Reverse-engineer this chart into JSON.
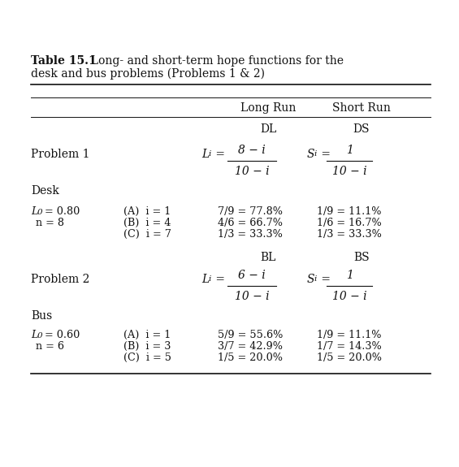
{
  "background_color": "#ffffff",
  "text_color": "#111111",
  "title_bold": "Table 15.1",
  "title_rest": "  Long- and short-term hope functions for the",
  "title_line2": "desk and bus problems (Problems 1 & 2)",
  "col_lr_label": "Long Run",
  "col_sr_label": "Short Run",
  "subhdr1_lr": "DL",
  "subhdr1_sr": "DS",
  "subhdr2_lr": "BL",
  "subhdr2_sr": "BS",
  "p1_label": "Problem 1",
  "p1_lr_num": "8 − i",
  "p1_lr_den": "10 − i",
  "p1_sr_num": "1",
  "p1_sr_den": "10 − i",
  "desk_label": "Desk",
  "desk_L0": "L",
  "desk_L0_sub": "0",
  "desk_L0_val": " = 0.80",
  "desk_n": "n = 8",
  "desk_rows": [
    {
      "label": "(A)  i = 1",
      "lr": "7/9 = 77.8%",
      "sr": "1/9 = 11.1%"
    },
    {
      "label": "(B)  i = 4",
      "lr": "4/6 = 66.7%",
      "sr": "1/6 = 16.7%"
    },
    {
      "label": "(C)  i = 7",
      "lr": "1/3 = 33.3%",
      "sr": "1/3 = 33.3%"
    }
  ],
  "p2_label": "Problem 2",
  "p2_lr_num": "6 − i",
  "p2_lr_den": "10 − i",
  "p2_sr_num": "1",
  "p2_sr_den": "10 − i",
  "bus_label": "Bus",
  "bus_L0": "L",
  "bus_L0_sub": "0",
  "bus_L0_val": " = 0.60",
  "bus_n": "n = 6",
  "bus_rows": [
    {
      "label": "(A)  i = 1",
      "lr": "5/9 = 55.6%",
      "sr": "1/9 = 11.1%"
    },
    {
      "label": "(B)  i = 3",
      "lr": "3/7 = 42.9%",
      "sr": "1/7 = 14.3%"
    },
    {
      "label": "(C)  i = 5",
      "lr": "1/5 = 20.0%",
      "sr": "1/5 = 20.0%"
    }
  ],
  "font_size": 10.0,
  "font_size_small": 9.2
}
